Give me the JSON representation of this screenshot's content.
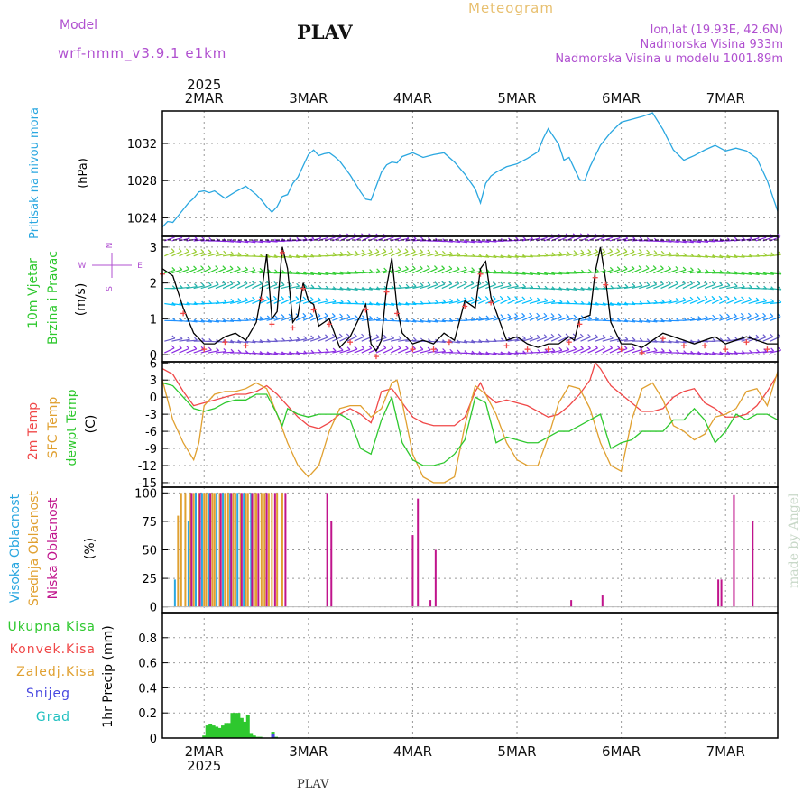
{
  "header": {
    "title": "Meteogram",
    "model_label": "Model",
    "model_name": "wrf-nmm_v3.9.1  e1km",
    "station": "PLAV",
    "coords": "lon,lat (19.93E, 42.6N)",
    "elevation": "Nadmorska Visina 933m",
    "model_elevation": "Nadmorska Visina u modelu 1001.89m"
  },
  "footer": {
    "station": "PLAV"
  },
  "watermark": "made by Angel",
  "colors": {
    "pressure": "#2aa7e0",
    "temp2m": "#f04848",
    "sfc": "#e0a030",
    "dewpt": "#2ec82e",
    "high_cloud": "#2aa7e0",
    "mid_cloud": "#e0a030",
    "low_cloud": "#c0148c",
    "precip_total": "#2ec82e",
    "precip_conv": "#f04848",
    "snow": "#4848e0",
    "grad": "#20c0c0",
    "model": "#b050d0"
  },
  "chart_data": [
    {
      "type": "line",
      "panel": "pressure",
      "ylabel_name": "Pritisak na nivou mora",
      "ylabel_unit": "(hPa)",
      "x_label_top": [
        "2MAR",
        "3MAR",
        "4MAR",
        "5MAR",
        "6MAR",
        "7MAR"
      ],
      "x_label_bottom": [
        "2MAR",
        "3MAR",
        "4MAR",
        "5MAR",
        "6MAR",
        "7MAR"
      ],
      "year": "2025",
      "xlim": [
        1.6,
        7.5
      ],
      "ylim": [
        1022.0,
        1035.5
      ],
      "yticks": [
        "1024",
        "1028",
        "1032"
      ],
      "grid": true,
      "series": [
        {
          "x": [
            1.6,
            1.65,
            1.7,
            1.75,
            1.8,
            1.85,
            1.9,
            1.95,
            2.0,
            2.05,
            2.1,
            2.2,
            2.3,
            2.4,
            2.5,
            2.55,
            2.6,
            2.65,
            2.7,
            2.75,
            2.8,
            2.85,
            2.9,
            2.95,
            3.0,
            3.05,
            3.1,
            3.15,
            3.2,
            3.25,
            3.3,
            3.4,
            3.5,
            3.55,
            3.6,
            3.65,
            3.7,
            3.75,
            3.8,
            3.85,
            3.9,
            3.95,
            4.0,
            4.1,
            4.2,
            4.3,
            4.4,
            4.5,
            4.6,
            4.65,
            4.7,
            4.75,
            4.8,
            4.9,
            5.0,
            5.1,
            5.2,
            5.25,
            5.3,
            5.4,
            5.45,
            5.5,
            5.6,
            5.65,
            5.7,
            5.8,
            5.9,
            6.0,
            6.1,
            6.2,
            6.3,
            6.4,
            6.5,
            6.6,
            6.7,
            6.8,
            6.9,
            7.0,
            7.1,
            7.2,
            7.3,
            7.4,
            7.5
          ],
          "values": [
            1023.0,
            1023.6,
            1023.5,
            1024.2,
            1024.9,
            1025.6,
            1026.1,
            1026.8,
            1026.9,
            1026.7,
            1026.9,
            1026.1,
            1026.8,
            1027.4,
            1026.5,
            1025.9,
            1025.2,
            1024.6,
            1025.2,
            1026.3,
            1026.5,
            1027.7,
            1028.4,
            1029.6,
            1030.8,
            1031.3,
            1030.7,
            1030.9,
            1031.0,
            1030.6,
            1030.1,
            1028.6,
            1026.8,
            1026.0,
            1025.9,
            1027.4,
            1028.9,
            1029.7,
            1030.0,
            1029.9,
            1030.6,
            1030.8,
            1031.0,
            1030.5,
            1030.8,
            1031.0,
            1030.0,
            1028.7,
            1027.1,
            1025.6,
            1027.7,
            1028.5,
            1028.9,
            1029.5,
            1029.8,
            1030.4,
            1031.1,
            1032.5,
            1033.6,
            1031.9,
            1030.2,
            1030.5,
            1028.1,
            1028.0,
            1029.5,
            1031.8,
            1033.2,
            1034.3,
            1034.6,
            1034.9,
            1035.3,
            1033.5,
            1031.3,
            1030.2,
            1030.7,
            1031.3,
            1031.8,
            1031.2,
            1031.5,
            1031.2,
            1030.4,
            1028.0,
            1024.7
          ]
        }
      ]
    },
    {
      "type": "line",
      "panel": "wind",
      "ylabel_name": "10m Vjetar",
      "ylabel_name2": "Brzina i Pravac",
      "ylabel_unit": "(m/s)",
      "compass": {
        "n": "N",
        "w": "W",
        "e": "E",
        "s": "S"
      },
      "ylim": [
        -0.2,
        3.3
      ],
      "yticks": [
        "0",
        "1",
        "2",
        "3"
      ],
      "grid": true,
      "series": [
        {
          "name": "speed",
          "x": [
            1.6,
            1.7,
            1.8,
            1.9,
            2.0,
            2.1,
            2.2,
            2.3,
            2.4,
            2.5,
            2.55,
            2.6,
            2.65,
            2.7,
            2.75,
            2.8,
            2.85,
            2.9,
            2.95,
            3.0,
            3.05,
            3.1,
            3.2,
            3.3,
            3.4,
            3.5,
            3.55,
            3.6,
            3.65,
            3.7,
            3.75,
            3.8,
            3.85,
            3.9,
            4.0,
            4.1,
            4.2,
            4.3,
            4.35,
            4.4,
            4.5,
            4.6,
            4.65,
            4.7,
            4.75,
            4.8,
            4.9,
            5.0,
            5.1,
            5.2,
            5.3,
            5.4,
            5.5,
            5.55,
            5.6,
            5.7,
            5.75,
            5.8,
            5.85,
            5.9,
            6.0,
            6.1,
            6.2,
            6.3,
            6.4,
            6.5,
            6.6,
            6.7,
            6.8,
            6.9,
            7.0,
            7.1,
            7.2,
            7.3,
            7.4,
            7.5
          ],
          "values": [
            2.4,
            2.2,
            1.3,
            0.6,
            0.3,
            0.3,
            0.5,
            0.6,
            0.4,
            0.9,
            1.7,
            2.8,
            1.0,
            1.2,
            3.0,
            2.4,
            0.9,
            1.1,
            2.0,
            1.5,
            1.4,
            0.8,
            1.0,
            0.2,
            0.5,
            1.1,
            1.4,
            0.3,
            0.1,
            0.4,
            1.9,
            2.7,
            1.3,
            0.6,
            0.3,
            0.4,
            0.3,
            0.6,
            0.5,
            0.4,
            1.5,
            1.3,
            2.4,
            2.6,
            1.6,
            1.2,
            0.4,
            0.5,
            0.3,
            0.2,
            0.3,
            0.3,
            0.5,
            0.4,
            1.0,
            1.1,
            2.3,
            3.0,
            2.1,
            0.9,
            0.3,
            0.3,
            0.2,
            0.4,
            0.6,
            0.5,
            0.4,
            0.3,
            0.4,
            0.5,
            0.3,
            0.4,
            0.5,
            0.4,
            0.3,
            0.3
          ]
        }
      ]
    },
    {
      "type": "line",
      "panel": "temperature",
      "ylabel_name": "2m Temp",
      "ylabel_name2": "SFC Temp",
      "ylabel_name3": "dewpt Temp",
      "ylabel_unit": "(C)",
      "ylim": [
        -15.8,
        6.2
      ],
      "yticks": [
        "-15",
        "-12",
        "-9",
        "-6",
        "-3",
        "0",
        "3",
        "6"
      ],
      "grid": true,
      "series": [
        {
          "name": "2m Temp",
          "x": [
            1.6,
            1.7,
            1.8,
            1.9,
            2.0,
            2.1,
            2.2,
            2.3,
            2.4,
            2.5,
            2.6,
            2.7,
            2.8,
            2.9,
            3.0,
            3.1,
            3.2,
            3.3,
            3.4,
            3.5,
            3.6,
            3.65,
            3.7,
            3.8,
            3.9,
            4.0,
            4.1,
            4.2,
            4.3,
            4.4,
            4.5,
            4.6,
            4.65,
            4.7,
            4.8,
            4.9,
            5.0,
            5.1,
            5.2,
            5.3,
            5.4,
            5.5,
            5.6,
            5.7,
            5.75,
            5.8,
            5.9,
            6.0,
            6.1,
            6.2,
            6.3,
            6.4,
            6.5,
            6.6,
            6.7,
            6.8,
            6.9,
            7.0,
            7.1,
            7.2,
            7.3,
            7.4,
            7.5
          ],
          "values": [
            5.0,
            4.0,
            1.0,
            -1.5,
            -1.0,
            -0.5,
            0.0,
            0.5,
            0.5,
            1.0,
            2.0,
            0.5,
            -1.5,
            -3.5,
            -5.0,
            -5.5,
            -4.5,
            -3.0,
            -2.0,
            -3.0,
            -4.5,
            -2.0,
            1.0,
            1.5,
            -1.0,
            -3.5,
            -4.5,
            -5.0,
            -5.0,
            -5.0,
            -3.5,
            1.0,
            2.5,
            0.5,
            -1.0,
            -0.5,
            -1.0,
            -1.5,
            -2.5,
            -3.5,
            -3.0,
            -1.5,
            0.5,
            3.0,
            6.0,
            5.0,
            2.0,
            0.5,
            -1.0,
            -2.5,
            -2.5,
            -2.0,
            0.0,
            1.0,
            1.5,
            -1.0,
            -2.0,
            -3.5,
            -3.5,
            -3.0,
            -1.5,
            1.0,
            4.0
          ]
        },
        {
          "name": "SFC Temp",
          "x": [
            1.6,
            1.7,
            1.8,
            1.9,
            1.95,
            2.0,
            2.1,
            2.2,
            2.3,
            2.4,
            2.5,
            2.6,
            2.7,
            2.8,
            2.9,
            3.0,
            3.1,
            3.2,
            3.3,
            3.4,
            3.5,
            3.6,
            3.7,
            3.8,
            3.85,
            3.9,
            4.0,
            4.1,
            4.2,
            4.3,
            4.4,
            4.5,
            4.6,
            4.7,
            4.8,
            4.9,
            5.0,
            5.1,
            5.2,
            5.3,
            5.4,
            5.5,
            5.6,
            5.7,
            5.8,
            5.9,
            6.0,
            6.1,
            6.2,
            6.3,
            6.4,
            6.5,
            6.6,
            6.7,
            6.8,
            6.9,
            7.0,
            7.1,
            7.2,
            7.3,
            7.4,
            7.5
          ],
          "values": [
            3.0,
            -4.0,
            -8.0,
            -11.0,
            -8.0,
            -1.5,
            0.5,
            1.0,
            1.0,
            1.5,
            2.5,
            1.5,
            -3.0,
            -8.0,
            -12.0,
            -14.0,
            -12.0,
            -6.0,
            -2.0,
            -1.5,
            -1.5,
            -3.5,
            -2.0,
            2.5,
            3.0,
            -1.0,
            -10.0,
            -14.0,
            -15.0,
            -15.0,
            -14.0,
            -5.0,
            2.0,
            0.5,
            -3.0,
            -8.0,
            -11.0,
            -12.0,
            -12.0,
            -7.0,
            -1.0,
            2.0,
            1.5,
            -2.0,
            -8.0,
            -12.0,
            -13.0,
            -4.0,
            1.5,
            2.5,
            -0.5,
            -5.0,
            -6.0,
            -7.5,
            -6.5,
            -3.5,
            -3.0,
            -2.0,
            1.0,
            1.5,
            -1.5,
            4.5
          ]
        },
        {
          "name": "dewpt Temp",
          "x": [
            1.6,
            1.7,
            1.8,
            1.9,
            2.0,
            2.1,
            2.2,
            2.3,
            2.4,
            2.5,
            2.6,
            2.7,
            2.75,
            2.8,
            2.9,
            3.0,
            3.1,
            3.2,
            3.3,
            3.4,
            3.5,
            3.6,
            3.7,
            3.8,
            3.9,
            4.0,
            4.1,
            4.2,
            4.3,
            4.4,
            4.5,
            4.6,
            4.7,
            4.8,
            4.9,
            5.0,
            5.1,
            5.2,
            5.3,
            5.4,
            5.5,
            5.6,
            5.7,
            5.8,
            5.9,
            6.0,
            6.1,
            6.2,
            6.3,
            6.4,
            6.5,
            6.6,
            6.7,
            6.8,
            6.9,
            7.0,
            7.1,
            7.2,
            7.3,
            7.4,
            7.5
          ],
          "values": [
            2.5,
            2.0,
            0.0,
            -2.0,
            -2.5,
            -2.0,
            -1.0,
            -0.5,
            -0.5,
            0.5,
            0.5,
            -3.0,
            -5.0,
            -2.0,
            -3.0,
            -3.5,
            -3.0,
            -3.0,
            -3.0,
            -4.0,
            -9.0,
            -10.0,
            -4.0,
            0.0,
            -8.0,
            -11.0,
            -12.0,
            -12.0,
            -11.5,
            -10.0,
            -7.5,
            0.0,
            -1.0,
            -8.0,
            -7.0,
            -7.5,
            -8.0,
            -8.0,
            -7.0,
            -6.0,
            -6.0,
            -5.0,
            -4.0,
            -3.0,
            -9.0,
            -8.0,
            -7.5,
            -6.0,
            -6.0,
            -6.0,
            -4.0,
            -4.0,
            -2.0,
            -4.0,
            -8.0,
            -6.0,
            -3.0,
            -4.0,
            -3.0,
            -3.0,
            -4.0
          ]
        }
      ]
    },
    {
      "type": "bar",
      "panel": "cloud",
      "ylabel_name": "Visoka Oblacnost",
      "ylabel_name2": "Srednja Oblacnost",
      "ylabel_name3": "Niska Oblacnost",
      "ylabel_unit": "(%)",
      "ylim": [
        -5,
        105
      ],
      "yticks": [
        "0",
        "25",
        "50",
        "75",
        "100"
      ],
      "grid": true,
      "series": [
        {
          "name": "Visoka Oblacnost",
          "x": [
            1.72,
            1.85,
            1.92,
            1.98,
            2.05,
            2.12,
            2.18,
            2.25,
            2.32,
            2.38,
            2.45
          ],
          "values": [
            24,
            75,
            100,
            100,
            100,
            100,
            100,
            100,
            100,
            100,
            100
          ]
        },
        {
          "name": "Srednja Oblacnost",
          "x": [
            1.75,
            1.78,
            1.82,
            1.87,
            1.9,
            1.95,
            2.0,
            2.02,
            2.08,
            2.1,
            2.15,
            2.2,
            2.23,
            2.28,
            2.3,
            2.35,
            2.4,
            2.42,
            2.48,
            2.5,
            2.55,
            2.58,
            2.62,
            2.65,
            2.7,
            2.75
          ],
          "values": [
            80,
            100,
            100,
            100,
            100,
            100,
            100,
            100,
            100,
            100,
            100,
            100,
            100,
            100,
            100,
            100,
            100,
            100,
            100,
            100,
            100,
            100,
            100,
            100,
            100,
            100
          ]
        },
        {
          "name": "Niska Oblacnost",
          "x": [
            1.88,
            1.96,
            2.06,
            2.16,
            2.26,
            2.36,
            2.46,
            2.52,
            2.6,
            2.68,
            2.78,
            3.18,
            3.22,
            4.0,
            4.05,
            4.17,
            4.22,
            5.52,
            5.82,
            6.93,
            6.96,
            7.08,
            7.26
          ],
          "values": [
            100,
            100,
            100,
            100,
            100,
            100,
            100,
            100,
            100,
            100,
            100,
            100,
            75,
            63,
            95,
            6,
            50,
            6,
            10,
            24,
            24,
            98,
            75
          ]
        }
      ]
    },
    {
      "type": "bar",
      "panel": "precip",
      "legend": [
        "Ukupna Kisa",
        "Konvek.Kisa",
        "Zaledj.Kisa",
        "Snijeg",
        "Grad"
      ],
      "ylabel_unit": "1hr Precip (mm)",
      "ylim": [
        0,
        1.0
      ],
      "yticks": [
        "0",
        "0.2",
        "0.4",
        "0.6",
        "0.8"
      ],
      "grid": true,
      "series": [
        {
          "name": "Ukupna Kisa",
          "x": [
            2.0,
            2.03,
            2.06,
            2.09,
            2.12,
            2.15,
            2.18,
            2.21,
            2.24,
            2.27,
            2.3,
            2.33,
            2.36,
            2.39,
            2.42,
            2.45,
            2.48,
            2.51,
            2.54,
            2.66,
            2.69
          ],
          "values": [
            0.02,
            0.1,
            0.11,
            0.1,
            0.09,
            0.08,
            0.1,
            0.12,
            0.12,
            0.2,
            0.2,
            0.2,
            0.16,
            0.13,
            0.18,
            0.04,
            0.02,
            0.01,
            0.01,
            0.05,
            0.01
          ]
        },
        {
          "name": "Snijeg",
          "x": [
            2.66
          ],
          "values": [
            0.03
          ]
        }
      ]
    }
  ]
}
